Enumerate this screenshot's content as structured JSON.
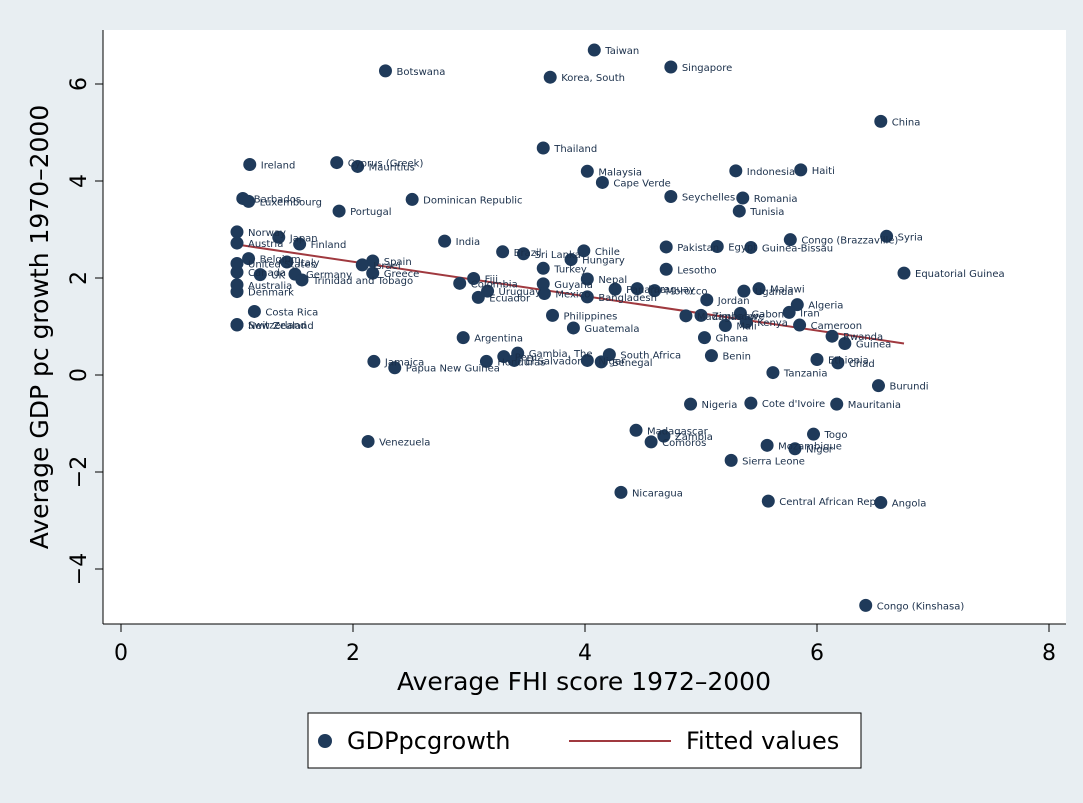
{
  "chart_data": {
    "type": "scatter",
    "xlabel": "Average FHI score 1972–2000",
    "ylabel": "Average GDP pc growth 1970–2000",
    "xlim": [
      0,
      8
    ],
    "ylim": [
      -5.2,
      7.1
    ],
    "xticks": [
      "0",
      "2",
      "4",
      "6",
      "8"
    ],
    "yticks": [
      "6",
      "4",
      "2",
      "0",
      "−2",
      "−4"
    ],
    "ytick_values": [
      6,
      4,
      2,
      0,
      -2,
      -4
    ],
    "xtick_values": [
      0,
      2,
      4,
      6,
      8
    ],
    "grid": false,
    "legend_position": "bottom",
    "series": [
      {
        "name": "GDPpcgrowth",
        "color": "#1f3a5a",
        "points": [
          {
            "x": 4.08,
            "y": 6.7,
            "label": "Taiwan"
          },
          {
            "x": 2.28,
            "y": 6.27,
            "label": "Botswana"
          },
          {
            "x": 3.7,
            "y": 6.14,
            "label": "Korea, South"
          },
          {
            "x": 4.74,
            "y": 6.35,
            "label": "Singapore"
          },
          {
            "x": 6.55,
            "y": 5.23,
            "label": "China"
          },
          {
            "x": 3.64,
            "y": 4.68,
            "label": "Thailand"
          },
          {
            "x": 1.11,
            "y": 4.34,
            "label": "Ireland"
          },
          {
            "x": 1.86,
            "y": 4.38,
            "label": "Cyprus (Greek)"
          },
          {
            "x": 2.04,
            "y": 4.3,
            "label": "Mauritius"
          },
          {
            "x": 4.02,
            "y": 4.2,
            "label": "Malaysia"
          },
          {
            "x": 4.15,
            "y": 3.97,
            "label": "Cape Verde"
          },
          {
            "x": 5.3,
            "y": 4.21,
            "label": "Indonesia"
          },
          {
            "x": 5.86,
            "y": 4.23,
            "label": "Haiti"
          },
          {
            "x": 1.05,
            "y": 3.64,
            "label": "Barbados"
          },
          {
            "x": 1.1,
            "y": 3.58,
            "label": "Luxembourg"
          },
          {
            "x": 1.88,
            "y": 3.38,
            "label": "Portugal"
          },
          {
            "x": 2.51,
            "y": 3.62,
            "label": "Dominican Republic"
          },
          {
            "x": 4.74,
            "y": 3.68,
            "label": "Seychelles"
          },
          {
            "x": 5.36,
            "y": 3.65,
            "label": "Romania"
          },
          {
            "x": 5.33,
            "y": 3.38,
            "label": "Tunisia"
          },
          {
            "x": 1.0,
            "y": 2.95,
            "label": "Norway"
          },
          {
            "x": 1.0,
            "y": 2.72,
            "label": "Austria"
          },
          {
            "x": 1.36,
            "y": 2.84,
            "label": "Japan"
          },
          {
            "x": 1.54,
            "y": 2.7,
            "label": "Finland"
          },
          {
            "x": 2.79,
            "y": 2.76,
            "label": "India"
          },
          {
            "x": 3.29,
            "y": 2.54,
            "label": "Brazil"
          },
          {
            "x": 3.47,
            "y": 2.5,
            "label": "Sri Lanka"
          },
          {
            "x": 3.99,
            "y": 2.56,
            "label": "Chile"
          },
          {
            "x": 3.88,
            "y": 2.38,
            "label": "Hungary"
          },
          {
            "x": 4.7,
            "y": 2.64,
            "label": "Pakistan"
          },
          {
            "x": 5.14,
            "y": 2.65,
            "label": "Egypt"
          },
          {
            "x": 5.43,
            "y": 2.63,
            "label": "Guinea-Bissau"
          },
          {
            "x": 5.77,
            "y": 2.79,
            "label": "Congo (Brazzaville)"
          },
          {
            "x": 6.6,
            "y": 2.86,
            "label": "Syria"
          },
          {
            "x": 6.75,
            "y": 2.1,
            "label": "Equatorial Guinea"
          },
          {
            "x": 1.1,
            "y": 2.4,
            "label": "Belgium"
          },
          {
            "x": 1.0,
            "y": 2.3,
            "label": "United States"
          },
          {
            "x": 1.43,
            "y": 2.33,
            "label": "Italy"
          },
          {
            "x": 2.17,
            "y": 2.35,
            "label": "Spain"
          },
          {
            "x": 2.08,
            "y": 2.27,
            "label": "Israel"
          },
          {
            "x": 1.0,
            "y": 2.12,
            "label": "Canada"
          },
          {
            "x": 1.2,
            "y": 2.07,
            "label": "UK"
          },
          {
            "x": 1.5,
            "y": 2.08,
            "label": "Germany"
          },
          {
            "x": 2.17,
            "y": 2.1,
            "label": "Greece"
          },
          {
            "x": 1.56,
            "y": 1.96,
            "label": "Trinidad and Tobago"
          },
          {
            "x": 1.0,
            "y": 1.86,
            "label": "Australia"
          },
          {
            "x": 1.0,
            "y": 1.72,
            "label": "Denmark"
          },
          {
            "x": 3.04,
            "y": 1.99,
            "label": "Fiji"
          },
          {
            "x": 2.92,
            "y": 1.89,
            "label": "Colombia"
          },
          {
            "x": 3.16,
            "y": 1.73,
            "label": "Uruguay"
          },
          {
            "x": 3.08,
            "y": 1.6,
            "label": "Ecuador"
          },
          {
            "x": 3.64,
            "y": 2.2,
            "label": "Turkey"
          },
          {
            "x": 3.64,
            "y": 1.88,
            "label": "Guyana"
          },
          {
            "x": 4.02,
            "y": 1.98,
            "label": "Nepal"
          },
          {
            "x": 3.65,
            "y": 1.68,
            "label": "Mexico"
          },
          {
            "x": 4.02,
            "y": 1.61,
            "label": "Bangladesh"
          },
          {
            "x": 4.26,
            "y": 1.77,
            "label": "Panama"
          },
          {
            "x": 4.45,
            "y": 1.78,
            "label": "Paraguay"
          },
          {
            "x": 4.6,
            "y": 1.74,
            "label": "Morocco"
          },
          {
            "x": 4.7,
            "y": 2.18,
            "label": "Lesotho"
          },
          {
            "x": 5.37,
            "y": 1.73,
            "label": "Uganda"
          },
          {
            "x": 5.5,
            "y": 1.78,
            "label": "Malawi"
          },
          {
            "x": 5.05,
            "y": 1.55,
            "label": "Jordan"
          },
          {
            "x": 5.83,
            "y": 1.45,
            "label": "Algeria"
          },
          {
            "x": 1.15,
            "y": 1.31,
            "label": "Costa Rica"
          },
          {
            "x": 1.0,
            "y": 1.04,
            "label": "Switzerland"
          },
          {
            "x": 1.0,
            "y": 1.03,
            "label": "New Zealand"
          },
          {
            "x": 3.72,
            "y": 1.23,
            "label": "Philippines"
          },
          {
            "x": 3.9,
            "y": 0.97,
            "label": "Guatemala"
          },
          {
            "x": 4.87,
            "y": 1.22,
            "label": "Madagascar"
          },
          {
            "x": 5.0,
            "y": 1.23,
            "label": "Zimbabwe"
          },
          {
            "x": 5.34,
            "y": 1.27,
            "label": "Gabon"
          },
          {
            "x": 5.76,
            "y": 1.29,
            "label": "Iran"
          },
          {
            "x": 5.21,
            "y": 1.02,
            "label": "Mali"
          },
          {
            "x": 5.39,
            "y": 1.09,
            "label": "Kenya"
          },
          {
            "x": 5.85,
            "y": 1.03,
            "label": "Cameroon"
          },
          {
            "x": 2.95,
            "y": 0.77,
            "label": "Argentina"
          },
          {
            "x": 5.03,
            "y": 0.77,
            "label": "Ghana"
          },
          {
            "x": 6.13,
            "y": 0.8,
            "label": "Rwanda"
          },
          {
            "x": 6.24,
            "y": 0.65,
            "label": "Guinea"
          },
          {
            "x": 2.18,
            "y": 0.28,
            "label": "Jamaica"
          },
          {
            "x": 2.36,
            "y": 0.15,
            "label": "Papua New Guinea"
          },
          {
            "x": 3.42,
            "y": 0.45,
            "label": "Gambia, The"
          },
          {
            "x": 3.3,
            "y": 0.38,
            "label": "Peru"
          },
          {
            "x": 3.39,
            "y": 0.3,
            "label": "El Salvador"
          },
          {
            "x": 3.15,
            "y": 0.28,
            "label": "Honduras"
          },
          {
            "x": 4.21,
            "y": 0.42,
            "label": "South Africa"
          },
          {
            "x": 4.02,
            "y": 0.3,
            "label": "Niger"
          },
          {
            "x": 4.14,
            "y": 0.27,
            "label": "Senegal"
          },
          {
            "x": 5.09,
            "y": 0.4,
            "label": "Benin"
          },
          {
            "x": 6.0,
            "y": 0.32,
            "label": "Ethiopia"
          },
          {
            "x": 6.18,
            "y": 0.25,
            "label": "Chad"
          },
          {
            "x": 5.62,
            "y": 0.05,
            "label": "Tanzania"
          },
          {
            "x": 6.53,
            "y": -0.22,
            "label": "Burundi"
          },
          {
            "x": 4.91,
            "y": -0.6,
            "label": "Nigeria"
          },
          {
            "x": 5.43,
            "y": -0.58,
            "label": "Cote d'Ivoire"
          },
          {
            "x": 6.17,
            "y": -0.6,
            "label": "Mauritania"
          },
          {
            "x": 2.13,
            "y": -1.37,
            "label": "Venezuela"
          },
          {
            "x": 4.44,
            "y": -1.14,
            "label": "Madagascar"
          },
          {
            "x": 4.68,
            "y": -1.26,
            "label": "Zambia"
          },
          {
            "x": 4.57,
            "y": -1.38,
            "label": "Comoros"
          },
          {
            "x": 5.97,
            "y": -1.22,
            "label": "Togo"
          },
          {
            "x": 5.57,
            "y": -1.45,
            "label": "Mozambique"
          },
          {
            "x": 5.81,
            "y": -1.52,
            "label": "Niger"
          },
          {
            "x": 5.26,
            "y": -1.76,
            "label": "Sierra Leone"
          },
          {
            "x": 4.31,
            "y": -2.42,
            "label": "Nicaragua"
          },
          {
            "x": 5.58,
            "y": -2.6,
            "label": "Central African Rep"
          },
          {
            "x": 6.55,
            "y": -2.63,
            "label": "Angola"
          },
          {
            "x": 6.42,
            "y": -4.75,
            "label": "Congo (Kinshasa)"
          }
        ]
      },
      {
        "name": "Fitted values",
        "color": "#a0393f",
        "line": [
          [
            1.0,
            2.69
          ],
          [
            6.75,
            0.65
          ]
        ]
      }
    ]
  }
}
